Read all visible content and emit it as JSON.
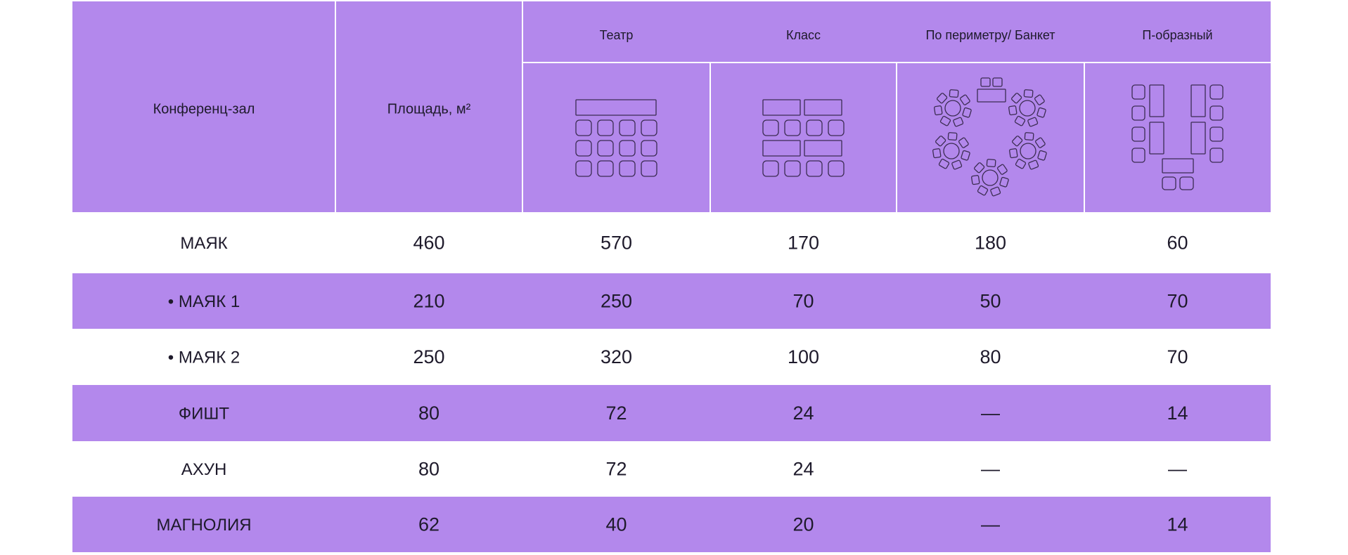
{
  "table": {
    "header": {
      "columns": [
        "Конференц-зал",
        "Площадь, м²"
      ],
      "layouts": [
        "Театр",
        "Класс",
        "По периметру/ Банкет",
        "П-образный"
      ]
    },
    "rows": [
      [
        "МАЯК",
        "460",
        "570",
        "170",
        "180",
        "60"
      ],
      [
        "• МАЯК 1",
        "210",
        "250",
        "70",
        "50",
        "70"
      ],
      [
        "• МАЯК 2",
        "250",
        "320",
        "100",
        "80",
        "70"
      ],
      [
        "ФИШТ",
        "80",
        "72",
        "24",
        "—",
        "14"
      ],
      [
        "АХУН",
        "80",
        "72",
        "24",
        "—",
        "—"
      ],
      [
        "МАГНОЛИЯ",
        "62",
        "40",
        "20",
        "—",
        "14"
      ]
    ]
  }
}
